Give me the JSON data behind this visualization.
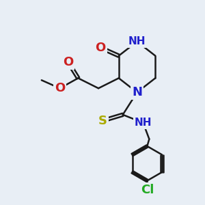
{
  "bg_color": "#e8eef5",
  "bond_color": "#1a1a1a",
  "bond_width": 1.8,
  "atom_colors": {
    "N": "#2020cc",
    "O": "#cc2020",
    "S": "#aaaa00",
    "Cl": "#22aa22",
    "C": "#1a1a1a",
    "H": "#2020cc"
  },
  "font_size_atom": 13,
  "font_size_small": 10
}
